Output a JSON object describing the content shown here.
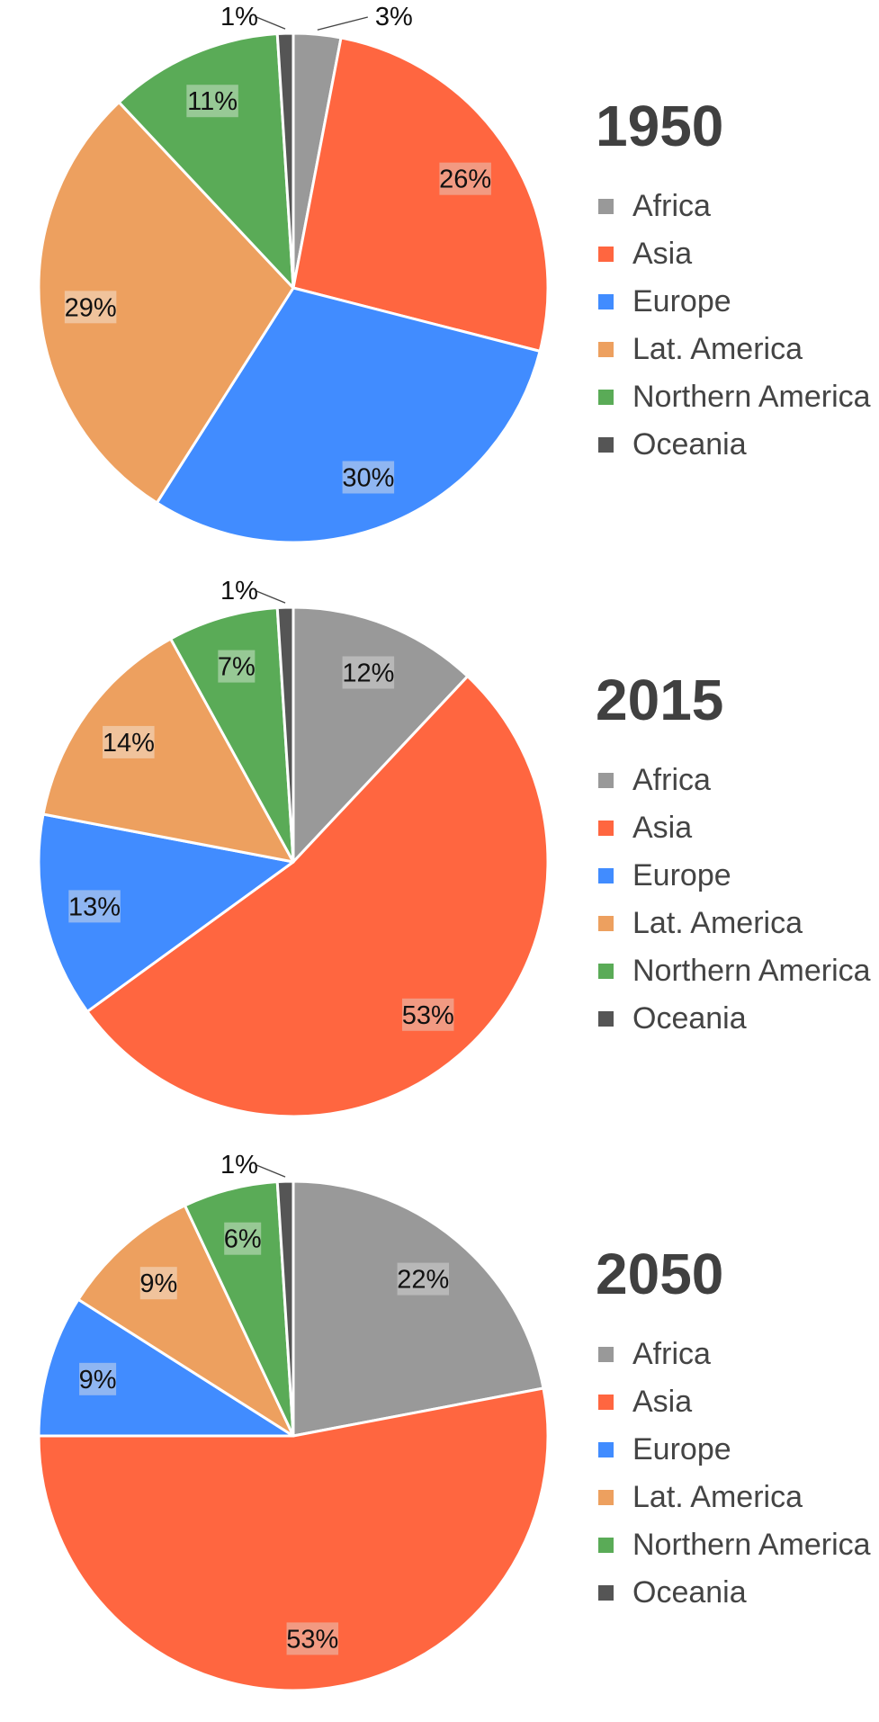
{
  "colors": {
    "Africa": "#999999",
    "Asia": "#ff6640",
    "Europe": "#418cff",
    "Lat. America": "#eda05f",
    "Northern America": "#5aab57",
    "Oceania": "#555555"
  },
  "chart_data": [
    {
      "type": "pie",
      "title": "1950",
      "legend_position": "right",
      "categories": [
        "Africa",
        "Asia",
        "Europe",
        "Lat. America",
        "Northern America",
        "Oceania"
      ],
      "values": [
        3,
        26,
        30,
        29,
        11,
        1
      ],
      "labels": [
        "3%",
        "26%",
        "30%",
        "29%",
        "11%",
        "1%"
      ]
    },
    {
      "type": "pie",
      "title": "2015",
      "legend_position": "right",
      "categories": [
        "Africa",
        "Asia",
        "Europe",
        "Lat. America",
        "Northern America",
        "Oceania"
      ],
      "values": [
        12,
        53,
        13,
        14,
        7,
        1
      ],
      "labels": [
        "12%",
        "53%",
        "13%",
        "14%",
        "7%",
        "1%"
      ]
    },
    {
      "type": "pie",
      "title": "2050",
      "legend_position": "right",
      "categories": [
        "Africa",
        "Asia",
        "Europe",
        "Lat. America",
        "Northern America",
        "Oceania"
      ],
      "values": [
        22,
        53,
        9,
        9,
        6,
        1
      ],
      "labels": [
        "22%",
        "53%",
        "9%",
        "9%",
        "6%",
        "1%"
      ]
    }
  ]
}
